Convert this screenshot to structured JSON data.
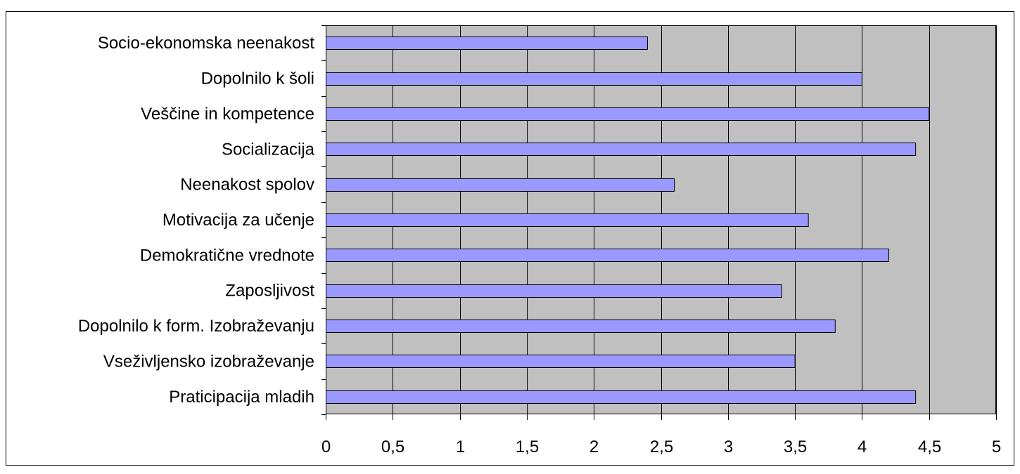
{
  "chart_data": {
    "type": "bar",
    "orientation": "horizontal",
    "categories": [
      "Socio-ekonomska neenakost",
      "Dopolnilo k šoli",
      "Veščine in kompetence",
      "Socializacija",
      "Neenakost spolov",
      "Motivacija za učenje",
      "Demokratične vrednote",
      "Zaposljivost",
      "Dopolnilo k form. Izobraževanju",
      "Vseživljensko izobraževanje",
      "Praticipacija mladih"
    ],
    "values": [
      2.4,
      4.0,
      4.5,
      4.4,
      2.6,
      3.6,
      4.2,
      3.4,
      3.8,
      3.5,
      4.4
    ],
    "x_ticks": [
      "0",
      "0,5",
      "1",
      "1,5",
      "2",
      "2,5",
      "3",
      "3,5",
      "4",
      "4,5",
      "5"
    ],
    "xlim": [
      0,
      5
    ],
    "grid": "vertical",
    "legend": "none",
    "title": "",
    "xlabel": "",
    "ylabel": "",
    "colors": {
      "bar_fill": "#9999ff",
      "bar_stroke": "#000000",
      "plot_background": "#c0c0c0",
      "gridline": "#000000",
      "frame": "#000000"
    }
  }
}
